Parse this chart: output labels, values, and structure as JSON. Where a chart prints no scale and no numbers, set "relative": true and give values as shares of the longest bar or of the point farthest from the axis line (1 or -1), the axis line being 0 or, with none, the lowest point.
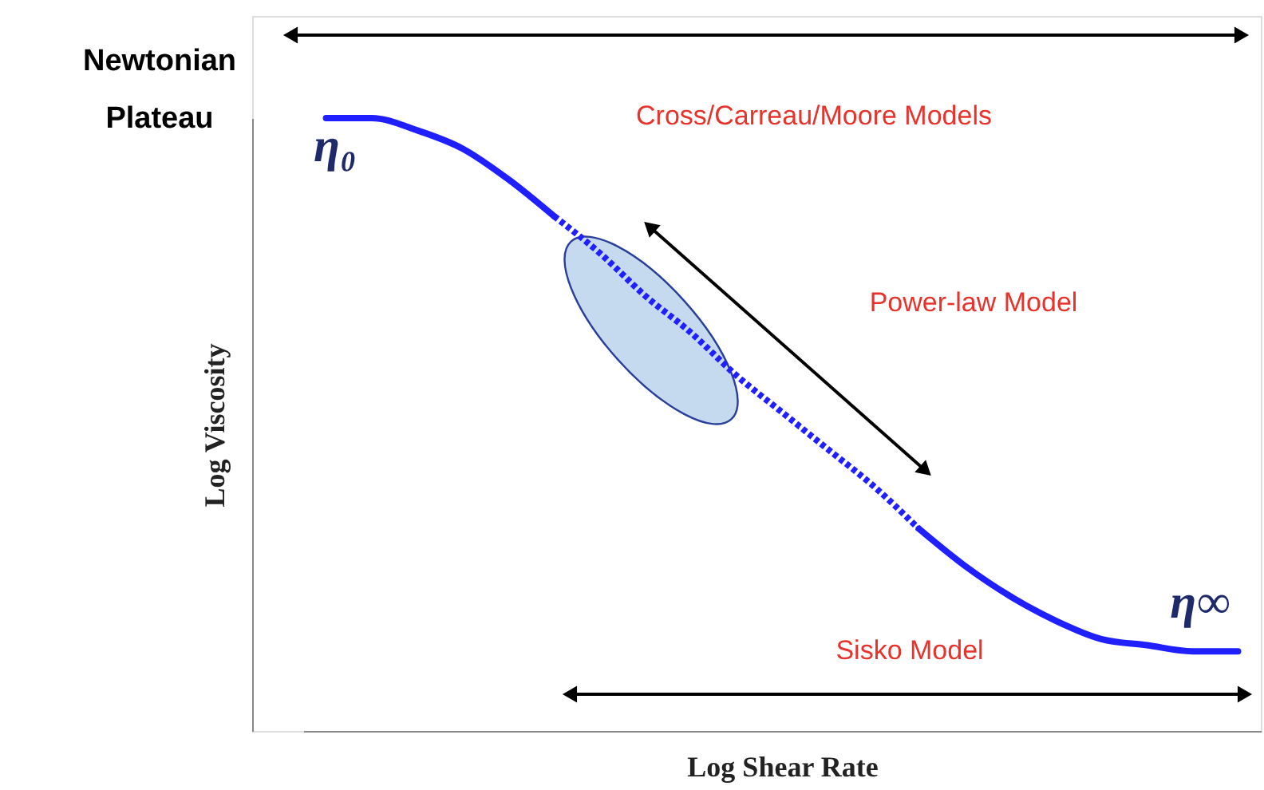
{
  "chart_data": {
    "type": "line",
    "relative": true,
    "categories": [
      null,
      null,
      null,
      null,
      null,
      null,
      null,
      null,
      null,
      null,
      null,
      null,
      null,
      null,
      null,
      null,
      null,
      null,
      null,
      null,
      null
    ],
    "series": [
      {
        "color": "#1f1fff",
        "line_style": "solid",
        "values": [
          1.0,
          1.0,
          0.98,
          0.95,
          0.9,
          0.84,
          null,
          null,
          null,
          null,
          null,
          null,
          null,
          null,
          null,
          null,
          null,
          null,
          null,
          null,
          null
        ]
      },
      {
        "color": "#1f1fff",
        "line_style": "dotted",
        "values": [
          null,
          null,
          null,
          null,
          null,
          0.84,
          0.78,
          0.71,
          0.65,
          0.58,
          0.52,
          0.46,
          0.4,
          0.33,
          null,
          null,
          null,
          null,
          null,
          null,
          null
        ]
      },
      {
        "color": "#1f1fff",
        "line_style": "solid",
        "values": [
          null,
          null,
          null,
          null,
          null,
          null,
          null,
          null,
          null,
          null,
          null,
          null,
          null,
          0.33,
          0.27,
          0.22,
          0.18,
          0.15,
          0.14,
          0.13,
          0.13
        ]
      }
    ],
    "xlabel": "Log Shear Rate",
    "ylabel": "Log Viscosity",
    "grid": false,
    "annotations": [
      "Newtonian Plateau",
      "Cross/Carreau/Moore Models",
      "Power-law Model",
      "Sisko Model",
      "η₀",
      "η∞"
    ]
  }
}
